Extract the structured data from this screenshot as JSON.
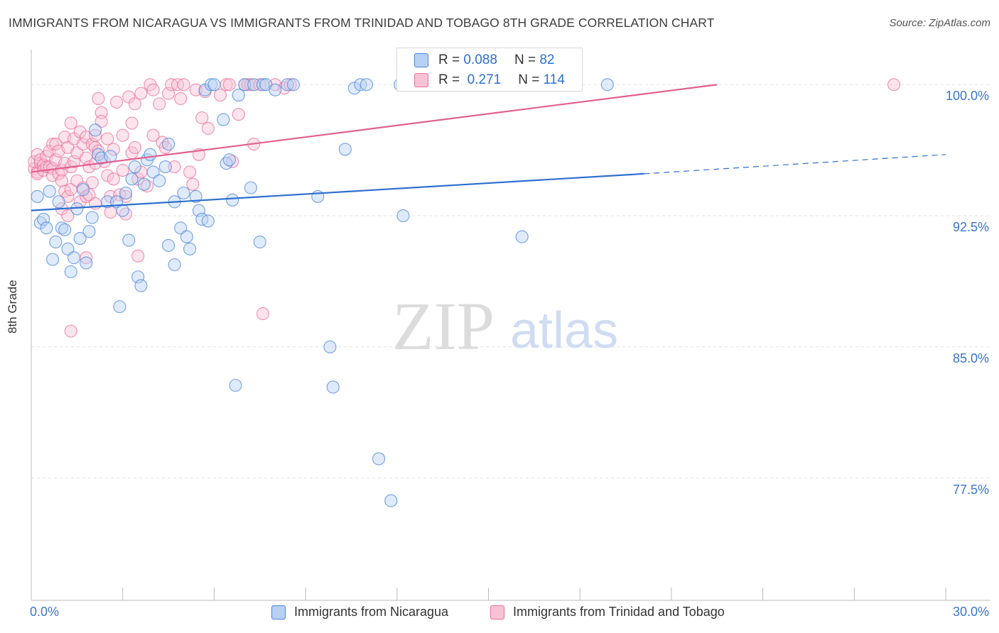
{
  "header": {
    "title": "IMMIGRANTS FROM NICARAGUA VS IMMIGRANTS FROM TRINIDAD AND TOBAGO 8TH GRADE CORRELATION CHART",
    "source": "Source: ZipAtlas.com"
  },
  "watermark": {
    "zip": "ZIP",
    "atlas": "atlas"
  },
  "legend_top": {
    "r_label": "R =",
    "n_label": "N =",
    "rows": [
      {
        "r": "0.088",
        "n": "82"
      },
      {
        "r": "0.271",
        "n": "114"
      }
    ]
  },
  "colors": {
    "blue_fill": "#b8d0f4",
    "blue_stroke": "#4a86d8",
    "blue_line": "#2f6fd0",
    "pink_fill": "#f8c2d4",
    "pink_stroke": "#e8709a",
    "pink_line": "#e0608e",
    "axis_label": "#3a76cc"
  },
  "chart_data": {
    "type": "scatter",
    "title": "IMMIGRANTS FROM NICARAGUA VS IMMIGRANTS FROM TRINIDAD AND TOBAGO 8TH GRADE CORRELATION CHART",
    "xlabel": "",
    "ylabel": "8th Grade",
    "xlim": [
      0,
      30
    ],
    "ylim": [
      70.5,
      102
    ],
    "x_tick_labels": [
      "0.0%",
      "30.0%"
    ],
    "y_ticks": [
      77.5,
      85.0,
      92.5,
      100.0
    ],
    "y_tick_labels": [
      "77.5%",
      "85.0%",
      "92.5%",
      "100.0%"
    ],
    "grid": true,
    "legend_position": "bottom",
    "series": [
      {
        "name": "Immigrants from Nicaragua",
        "R": 0.088,
        "N": 82,
        "trend": {
          "x": [
            0,
            20.1
          ],
          "y": [
            92.8,
            94.9
          ],
          "dashed_to": [
            30,
            96.0
          ]
        },
        "points": [
          [
            0.2,
            93.6
          ],
          [
            0.3,
            92.1
          ],
          [
            0.4,
            92.3
          ],
          [
            0.5,
            91.8
          ],
          [
            0.6,
            93.9
          ],
          [
            0.7,
            90.0
          ],
          [
            0.8,
            91.0
          ],
          [
            0.9,
            93.3
          ],
          [
            1.0,
            91.8
          ],
          [
            1.1,
            91.7
          ],
          [
            1.2,
            90.6
          ],
          [
            1.3,
            89.3
          ],
          [
            1.4,
            90.1
          ],
          [
            1.5,
            92.9
          ],
          [
            1.6,
            91.2
          ],
          [
            1.7,
            94.0
          ],
          [
            1.8,
            89.8
          ],
          [
            1.9,
            91.6
          ],
          [
            2.0,
            92.4
          ],
          [
            2.1,
            97.4
          ],
          [
            2.2,
            96.0
          ],
          [
            2.3,
            95.8
          ],
          [
            2.5,
            93.3
          ],
          [
            2.6,
            95.9
          ],
          [
            2.8,
            93.3
          ],
          [
            2.9,
            87.3
          ],
          [
            3.0,
            92.8
          ],
          [
            3.1,
            93.8
          ],
          [
            3.2,
            91.1
          ],
          [
            3.3,
            94.6
          ],
          [
            3.4,
            95.3
          ],
          [
            3.5,
            89.0
          ],
          [
            3.6,
            88.5
          ],
          [
            3.7,
            94.3
          ],
          [
            3.8,
            95.7
          ],
          [
            3.9,
            96.0
          ],
          [
            4.0,
            95.0
          ],
          [
            4.2,
            94.5
          ],
          [
            4.4,
            95.3
          ],
          [
            4.5,
            90.8
          ],
          [
            4.5,
            96.6
          ],
          [
            4.7,
            93.3
          ],
          [
            4.7,
            89.7
          ],
          [
            4.9,
            91.8
          ],
          [
            5.0,
            93.8
          ],
          [
            5.1,
            91.3
          ],
          [
            5.2,
            90.6
          ],
          [
            5.4,
            93.6
          ],
          [
            5.5,
            92.8
          ],
          [
            5.6,
            92.3
          ],
          [
            5.7,
            99.7
          ],
          [
            5.8,
            92.2
          ],
          [
            5.9,
            100.0
          ],
          [
            6.0,
            100.0
          ],
          [
            6.3,
            98.0
          ],
          [
            6.4,
            95.5
          ],
          [
            6.5,
            95.7
          ],
          [
            6.6,
            93.4
          ],
          [
            6.7,
            82.8
          ],
          [
            6.8,
            99.4
          ],
          [
            7.0,
            100.0
          ],
          [
            7.2,
            94.1
          ],
          [
            7.3,
            100.0
          ],
          [
            7.5,
            91.0
          ],
          [
            7.6,
            100.0
          ],
          [
            7.7,
            100.0
          ],
          [
            8.0,
            99.7
          ],
          [
            8.4,
            100.0
          ],
          [
            8.6,
            100.0
          ],
          [
            9.4,
            93.6
          ],
          [
            9.8,
            85.0
          ],
          [
            9.9,
            82.7
          ],
          [
            10.3,
            96.3
          ],
          [
            10.6,
            99.8
          ],
          [
            10.8,
            100.0
          ],
          [
            11.0,
            100.0
          ],
          [
            11.4,
            78.6
          ],
          [
            11.8,
            76.2
          ],
          [
            12.1,
            100.0
          ],
          [
            12.2,
            92.5
          ],
          [
            16.1,
            91.3
          ],
          [
            18.9,
            100.0
          ]
        ]
      },
      {
        "name": "Immigrants from Trinidad and Tobago",
        "R": 0.271,
        "N": 114,
        "trend": {
          "x": [
            0,
            22.5
          ],
          "y": [
            95.0,
            100.0
          ]
        },
        "points": [
          [
            0.1,
            95.2
          ],
          [
            0.1,
            95.6
          ],
          [
            0.2,
            96.0
          ],
          [
            0.2,
            95.0
          ],
          [
            0.2,
            94.9
          ],
          [
            0.3,
            95.5
          ],
          [
            0.3,
            95.7
          ],
          [
            0.4,
            95.4
          ],
          [
            0.4,
            95.1
          ],
          [
            0.5,
            95.9
          ],
          [
            0.5,
            95.3
          ],
          [
            0.6,
            96.2
          ],
          [
            0.6,
            95.3
          ],
          [
            0.7,
            96.6
          ],
          [
            0.7,
            95.2
          ],
          [
            0.7,
            94.8
          ],
          [
            0.8,
            95.7
          ],
          [
            0.8,
            96.6
          ],
          [
            0.9,
            94.9
          ],
          [
            0.9,
            96.2
          ],
          [
            1.0,
            95.1
          ],
          [
            1.0,
            94.5
          ],
          [
            1.0,
            92.9
          ],
          [
            1.1,
            97.0
          ],
          [
            1.1,
            95.5
          ],
          [
            1.1,
            93.9
          ],
          [
            1.2,
            96.4
          ],
          [
            1.2,
            93.6
          ],
          [
            1.2,
            92.5
          ],
          [
            1.3,
            97.8
          ],
          [
            1.3,
            95.3
          ],
          [
            1.3,
            94.0
          ],
          [
            1.3,
            85.9
          ],
          [
            1.4,
            96.9
          ],
          [
            1.4,
            95.6
          ],
          [
            1.5,
            96.1
          ],
          [
            1.5,
            94.5
          ],
          [
            1.6,
            97.3
          ],
          [
            1.6,
            93.3
          ],
          [
            1.7,
            96.6
          ],
          [
            1.7,
            94.1
          ],
          [
            1.8,
            97.0
          ],
          [
            1.8,
            95.8
          ],
          [
            1.8,
            93.6
          ],
          [
            1.8,
            90.1
          ],
          [
            1.9,
            95.3
          ],
          [
            1.9,
            93.7
          ],
          [
            2.0,
            96.6
          ],
          [
            2.0,
            94.4
          ],
          [
            2.1,
            97.1
          ],
          [
            2.1,
            96.4
          ],
          [
            2.1,
            95.5
          ],
          [
            2.1,
            93.2
          ],
          [
            2.2,
            99.2
          ],
          [
            2.2,
            96.2
          ],
          [
            2.3,
            98.4
          ],
          [
            2.3,
            97.9
          ],
          [
            2.4,
            95.6
          ],
          [
            2.5,
            96.9
          ],
          [
            2.5,
            94.8
          ],
          [
            2.6,
            93.6
          ],
          [
            2.6,
            92.7
          ],
          [
            2.7,
            96.3
          ],
          [
            2.7,
            94.6
          ],
          [
            2.8,
            99.0
          ],
          [
            2.9,
            93.7
          ],
          [
            3.0,
            97.1
          ],
          [
            3.0,
            95.1
          ],
          [
            3.1,
            93.6
          ],
          [
            3.1,
            92.6
          ],
          [
            3.2,
            99.3
          ],
          [
            3.3,
            97.8
          ],
          [
            3.3,
            96.1
          ],
          [
            3.4,
            98.9
          ],
          [
            3.4,
            96.4
          ],
          [
            3.5,
            94.6
          ],
          [
            3.5,
            90.2
          ],
          [
            3.6,
            99.5
          ],
          [
            3.6,
            95.0
          ],
          [
            3.8,
            94.2
          ],
          [
            3.9,
            100.0
          ],
          [
            4.0,
            99.7
          ],
          [
            4.0,
            97.1
          ],
          [
            4.2,
            98.9
          ],
          [
            4.3,
            96.7
          ],
          [
            4.4,
            96.4
          ],
          [
            4.5,
            99.5
          ],
          [
            4.6,
            100.0
          ],
          [
            4.7,
            95.3
          ],
          [
            4.8,
            100.0
          ],
          [
            4.9,
            99.2
          ],
          [
            5.0,
            100.0
          ],
          [
            5.2,
            95.0
          ],
          [
            5.3,
            94.3
          ],
          [
            5.4,
            99.7
          ],
          [
            5.5,
            96.0
          ],
          [
            5.6,
            98.1
          ],
          [
            5.7,
            99.6
          ],
          [
            5.8,
            97.5
          ],
          [
            6.2,
            99.4
          ],
          [
            6.4,
            100.0
          ],
          [
            6.5,
            100.0
          ],
          [
            6.6,
            95.6
          ],
          [
            6.8,
            98.3
          ],
          [
            7.0,
            100.0
          ],
          [
            7.1,
            100.0
          ],
          [
            7.2,
            100.0
          ],
          [
            7.3,
            96.6
          ],
          [
            7.5,
            100.0
          ],
          [
            7.6,
            86.9
          ],
          [
            8.0,
            100.0
          ],
          [
            8.3,
            99.8
          ],
          [
            8.5,
            100.0
          ],
          [
            28.3,
            100.0
          ]
        ]
      }
    ]
  }
}
